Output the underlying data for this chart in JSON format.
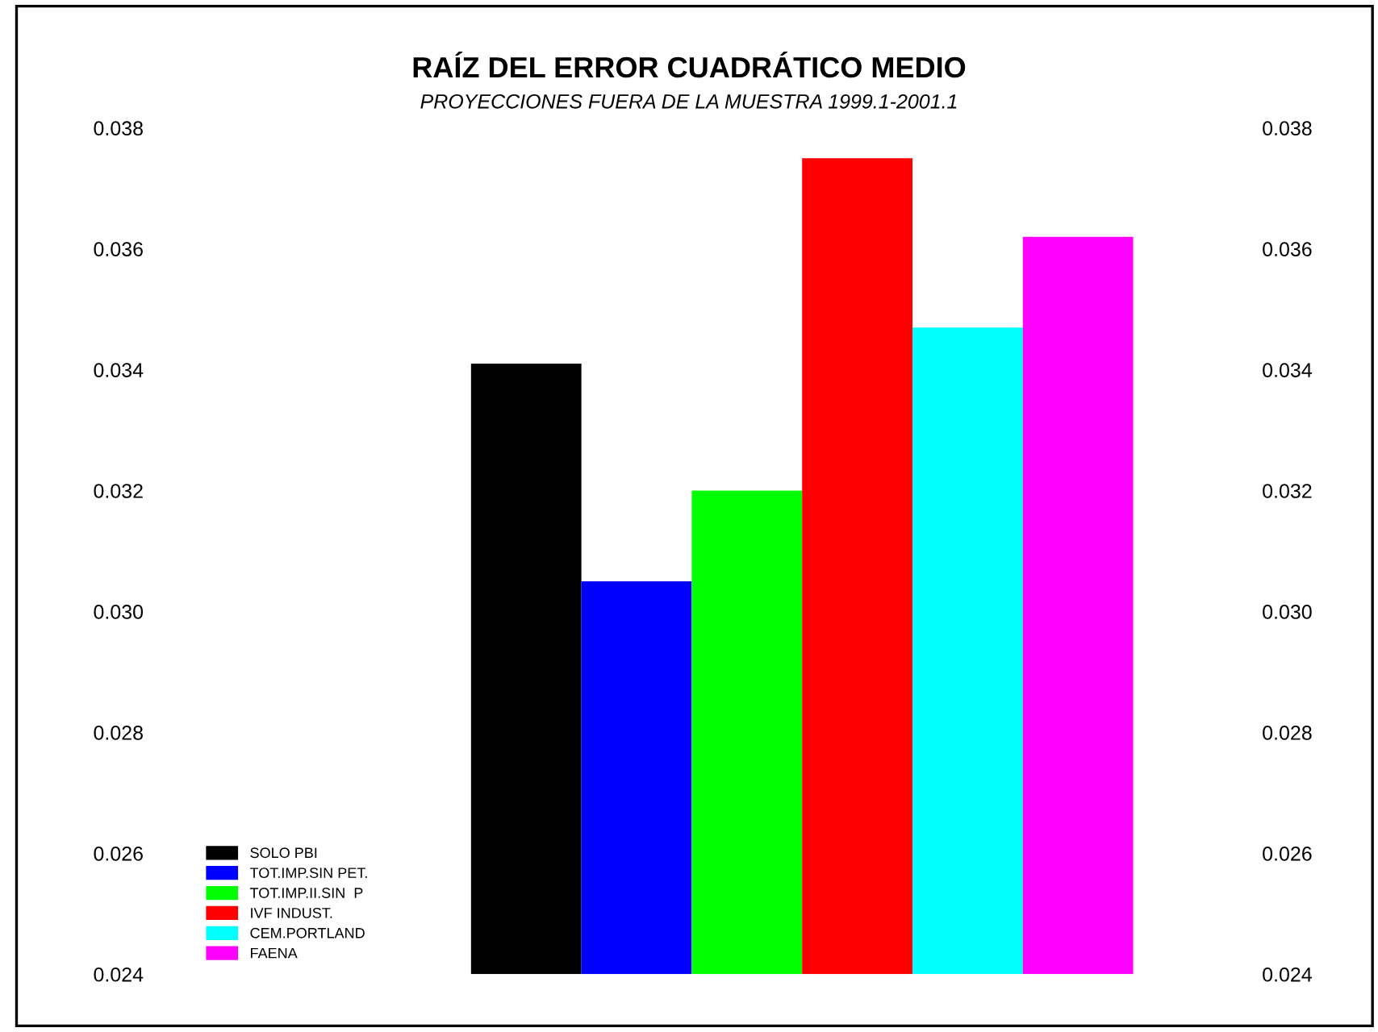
{
  "chart_data": {
    "type": "bar",
    "title": "RAÍZ DEL ERROR CUADRÁTICO MEDIO",
    "subtitle": "PROYECCIONES FUERA DE LA MUESTRA 1999.1-2001.1",
    "categories": [
      null
    ],
    "series": [
      {
        "name": "SOLO PBI",
        "color": "#000000",
        "values": [
          0.0341
        ]
      },
      {
        "name": "TOT.IMP.SIN PET.",
        "color": "#0000ff",
        "values": [
          0.0305
        ]
      },
      {
        "name": "TOT.IMP.II.SIN  P",
        "color": "#00ff00",
        "values": [
          0.032
        ]
      },
      {
        "name": "IVF INDUST.",
        "color": "#ff0000",
        "values": [
          0.0375
        ]
      },
      {
        "name": "CEM.PORTLAND",
        "color": "#00ffff",
        "values": [
          0.0347
        ]
      },
      {
        "name": "FAENA",
        "color": "#ff00ff",
        "values": [
          0.0362
        ]
      }
    ],
    "ylim": [
      0.024,
      0.038
    ],
    "yticks": [
      0.024,
      0.026,
      0.028,
      {
        "value": 0.03,
        "label": "0.030"
      },
      0.032,
      0.034,
      0.036,
      0.038
    ],
    "y2lim": [
      0.024,
      0.038
    ],
    "y2ticks": [
      0.024,
      0.026,
      0.028,
      {
        "value": 0.03,
        "label": "0.030"
      },
      0.032,
      0.034,
      0.036,
      0.038
    ],
    "grid": false,
    "legend": "bottom left"
  }
}
